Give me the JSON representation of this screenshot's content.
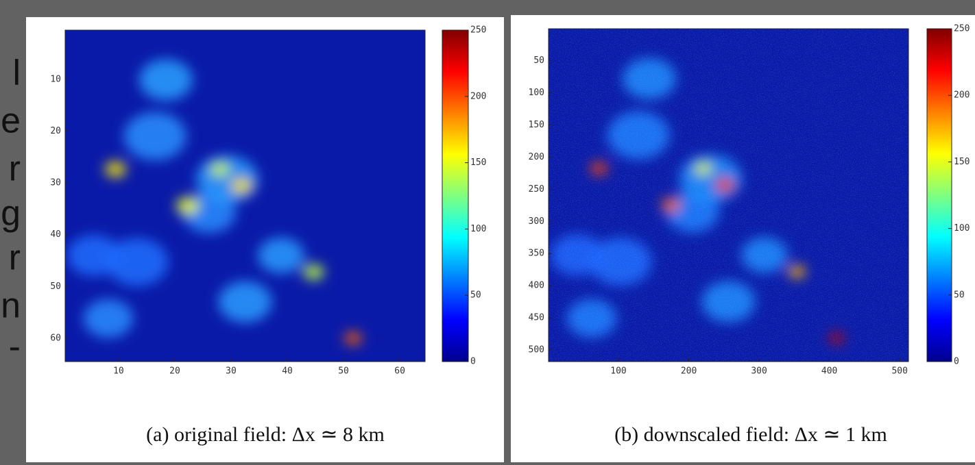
{
  "side_text": [
    "l",
    "e",
    "r",
    "g",
    "r",
    "n",
    "-"
  ],
  "chart_data": [
    {
      "type": "heatmap",
      "caption": "(a) original field: Δx ≃ 8 km",
      "xlim": [
        0.5,
        64.5
      ],
      "ylim": [
        0.5,
        64.5
      ],
      "y_reversed": true,
      "xticks": [
        10,
        20,
        30,
        40,
        50,
        60
      ],
      "yticks": [
        10,
        20,
        30,
        40,
        50,
        60
      ],
      "colorbar": {
        "clim": [
          0,
          250
        ],
        "ticks": [
          0,
          50,
          100,
          150,
          200,
          250
        ],
        "colormap": "jet"
      }
    },
    {
      "type": "heatmap",
      "caption": "(b) downscaled field: Δx ≃ 1 km",
      "xlim": [
        0.5,
        512.5
      ],
      "ylim": [
        0.5,
        518
      ],
      "y_reversed": true,
      "xticks": [
        100,
        200,
        300,
        400,
        500
      ],
      "yticks": [
        50,
        100,
        150,
        200,
        250,
        300,
        350,
        400,
        450,
        500
      ],
      "colorbar": {
        "clim": [
          0,
          250
        ],
        "ticks": [
          0,
          50,
          100,
          150,
          200,
          250
        ],
        "colormap": "jet"
      }
    }
  ]
}
